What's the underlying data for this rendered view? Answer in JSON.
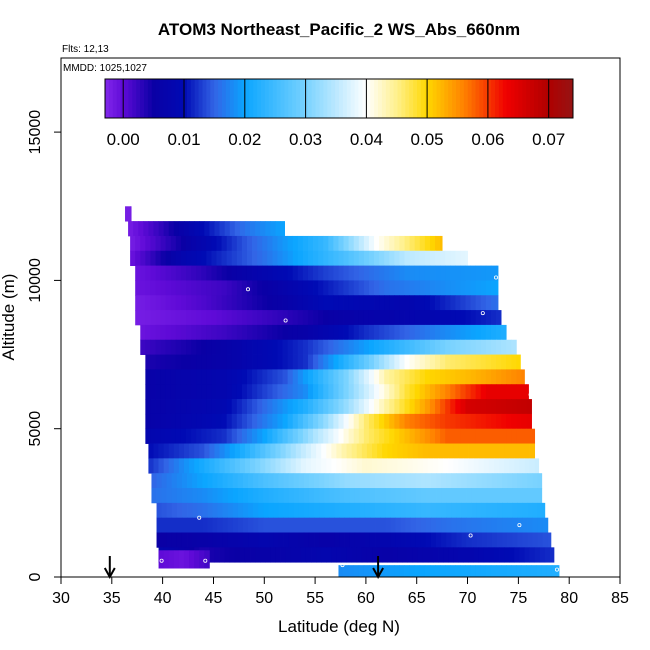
{
  "chart_data": {
    "type": "heatmap",
    "title": "ATOM3 Northeast_Pacific_2 WS_Abs_660nm",
    "annotations": {
      "flights": "Flts: 12,13",
      "dates": "MMDD: 1025,1027"
    },
    "xlabel": "Latitude (deg N)",
    "ylabel": "Altitude (m)",
    "xlim": [
      30,
      85
    ],
    "ylim": [
      0,
      17500
    ],
    "x_ticks": [
      "30",
      "35",
      "40",
      "45",
      "50",
      "55",
      "60",
      "65",
      "70",
      "75",
      "80",
      "85"
    ],
    "y_ticks": [
      "0",
      "5000",
      "10000",
      "15000"
    ],
    "y_tick_values": [
      0,
      5000,
      10000,
      15000
    ],
    "colorbar": {
      "range": [
        -0.003,
        0.074
      ],
      "tick_labels": [
        "0.00",
        "0.01",
        "0.02",
        "0.03",
        "0.04",
        "0.05",
        "0.06",
        "0.07"
      ],
      "tick_values": [
        0,
        0.01,
        0.02,
        0.03,
        0.04,
        0.05,
        0.06,
        0.07
      ]
    },
    "arrows_latitude": [
      34.8,
      61.2
    ],
    "bands": [
      {
        "alt_bottom": 12000,
        "alt_top": 12500,
        "lat_start": 36.3,
        "lat_end": 36.9,
        "knots": [
          [
            36.3,
            -0.002
          ],
          [
            36.9,
            -0.002
          ]
        ]
      },
      {
        "alt_bottom": 11500,
        "alt_top": 12000,
        "lat_start": 36.6,
        "lat_end": 52.0,
        "knots": [
          [
            36.6,
            -0.002
          ],
          [
            40.0,
            0.003
          ],
          [
            44.0,
            0.01
          ],
          [
            48.0,
            0.016
          ],
          [
            52.0,
            0.02
          ]
        ]
      },
      {
        "alt_bottom": 11000,
        "alt_top": 11500,
        "lat_start": 36.8,
        "lat_end": 67.5,
        "knots": [
          [
            36.8,
            -0.002
          ],
          [
            42.0,
            0.005
          ],
          [
            48.0,
            0.014
          ],
          [
            56.0,
            0.024
          ],
          [
            61.0,
            0.04
          ],
          [
            67.5,
            0.052
          ]
        ]
      },
      {
        "alt_bottom": 10500,
        "alt_top": 11000,
        "lat_start": 36.8,
        "lat_end": 70.0,
        "knots": [
          [
            36.8,
            -0.001
          ],
          [
            42.0,
            0.008
          ],
          [
            50.0,
            0.016
          ],
          [
            58.0,
            0.026
          ],
          [
            64.0,
            0.035
          ],
          [
            70.0,
            0.038
          ]
        ]
      },
      {
        "alt_bottom": 10000,
        "alt_top": 10500,
        "lat_start": 37.3,
        "lat_end": 73.0,
        "knots": [
          [
            37.3,
            -0.001
          ],
          [
            44.0,
            0.003
          ],
          [
            50.0,
            0.008
          ],
          [
            56.0,
            0.013
          ],
          [
            64.0,
            0.018
          ],
          [
            73.0,
            0.019
          ]
        ]
      },
      {
        "alt_bottom": 9500,
        "alt_top": 10000,
        "lat_start": 37.3,
        "lat_end": 73.0,
        "knots": [
          [
            37.3,
            -0.001
          ],
          [
            46.0,
            0.002
          ],
          [
            51.0,
            0.006
          ],
          [
            55.0,
            0.01
          ],
          [
            62.0,
            0.016
          ],
          [
            73.0,
            0.02
          ]
        ]
      },
      {
        "alt_bottom": 9000,
        "alt_top": 9500,
        "lat_start": 37.3,
        "lat_end": 73.0,
        "knots": [
          [
            37.3,
            -0.002
          ],
          [
            44.0,
            0.001
          ],
          [
            52.0,
            0.006
          ],
          [
            56.0,
            0.01
          ],
          [
            64.0,
            0.008
          ],
          [
            73.0,
            0.016
          ]
        ]
      },
      {
        "alt_bottom": 8500,
        "alt_top": 9000,
        "lat_start": 37.3,
        "lat_end": 73.3,
        "knots": [
          [
            37.3,
            -0.002
          ],
          [
            45.0,
            0.0
          ],
          [
            52.0,
            0.003
          ],
          [
            58.0,
            0.006
          ],
          [
            66.0,
            0.008
          ],
          [
            73.3,
            0.012
          ]
        ]
      },
      {
        "alt_bottom": 8000,
        "alt_top": 8500,
        "lat_start": 37.8,
        "lat_end": 73.8,
        "knots": [
          [
            37.8,
            -0.001
          ],
          [
            46.0,
            0.002
          ],
          [
            54.0,
            0.006
          ],
          [
            60.0,
            0.012
          ],
          [
            68.0,
            0.018
          ],
          [
            73.8,
            0.022
          ]
        ]
      },
      {
        "alt_bottom": 7500,
        "alt_top": 8000,
        "lat_start": 37.8,
        "lat_end": 74.8,
        "knots": [
          [
            37.8,
            0.002
          ],
          [
            46.0,
            0.006
          ],
          [
            54.0,
            0.012
          ],
          [
            62.0,
            0.022
          ],
          [
            68.0,
            0.03
          ],
          [
            74.8,
            0.034
          ]
        ]
      },
      {
        "alt_bottom": 7000,
        "alt_top": 7500,
        "lat_start": 38.3,
        "lat_end": 75.2,
        "knots": [
          [
            38.3,
            0.004
          ],
          [
            46.0,
            0.006
          ],
          [
            54.0,
            0.012
          ],
          [
            60.0,
            0.028
          ],
          [
            64.0,
            0.04
          ],
          [
            68.0,
            0.046
          ],
          [
            75.2,
            0.05
          ]
        ]
      },
      {
        "alt_bottom": 6500,
        "alt_top": 7000,
        "lat_start": 38.3,
        "lat_end": 75.6,
        "knots": [
          [
            38.3,
            0.006
          ],
          [
            46.0,
            0.008
          ],
          [
            52.0,
            0.014
          ],
          [
            58.0,
            0.03
          ],
          [
            62.0,
            0.044
          ],
          [
            66.0,
            0.05
          ],
          [
            70.0,
            0.052
          ],
          [
            75.6,
            0.056
          ]
        ]
      },
      {
        "alt_bottom": 6000,
        "alt_top": 6500,
        "lat_start": 38.3,
        "lat_end": 76.0,
        "knots": [
          [
            38.3,
            0.006
          ],
          [
            46.0,
            0.008
          ],
          [
            54.0,
            0.018
          ],
          [
            60.0,
            0.036
          ],
          [
            64.0,
            0.048
          ],
          [
            68.0,
            0.056
          ],
          [
            72.0,
            0.064
          ],
          [
            76.0,
            0.064
          ]
        ]
      },
      {
        "alt_bottom": 5500,
        "alt_top": 6000,
        "lat_start": 38.3,
        "lat_end": 76.3,
        "knots": [
          [
            38.3,
            0.006
          ],
          [
            46.0,
            0.009
          ],
          [
            54.0,
            0.022
          ],
          [
            58.0,
            0.032
          ],
          [
            62.0,
            0.044
          ],
          [
            66.0,
            0.054
          ],
          [
            70.0,
            0.066
          ],
          [
            76.3,
            0.068
          ]
        ]
      },
      {
        "alt_bottom": 5000,
        "alt_top": 5500,
        "lat_start": 38.3,
        "lat_end": 76.3,
        "knots": [
          [
            38.3,
            0.006
          ],
          [
            46.0,
            0.01
          ],
          [
            52.0,
            0.02
          ],
          [
            56.0,
            0.032
          ],
          [
            60.0,
            0.046
          ],
          [
            64.0,
            0.056
          ],
          [
            68.0,
            0.06
          ],
          [
            72.0,
            0.062
          ],
          [
            76.3,
            0.064
          ]
        ]
      },
      {
        "alt_bottom": 4500,
        "alt_top": 5000,
        "lat_start": 38.3,
        "lat_end": 76.6,
        "knots": [
          [
            38.3,
            0.008
          ],
          [
            46.0,
            0.012
          ],
          [
            50.0,
            0.02
          ],
          [
            55.0,
            0.034
          ],
          [
            60.0,
            0.046
          ],
          [
            64.0,
            0.052
          ],
          [
            68.0,
            0.058
          ],
          [
            76.6,
            0.058
          ]
        ]
      },
      {
        "alt_bottom": 4000,
        "alt_top": 4500,
        "lat_start": 38.6,
        "lat_end": 76.6,
        "knots": [
          [
            38.6,
            0.01
          ],
          [
            44.0,
            0.014
          ],
          [
            48.0,
            0.022
          ],
          [
            54.0,
            0.036
          ],
          [
            58.0,
            0.044
          ],
          [
            62.0,
            0.05
          ],
          [
            66.0,
            0.052
          ],
          [
            76.6,
            0.052
          ]
        ]
      },
      {
        "alt_bottom": 3500,
        "alt_top": 4000,
        "lat_start": 38.6,
        "lat_end": 77.0,
        "knots": [
          [
            38.6,
            0.012
          ],
          [
            42.0,
            0.018
          ],
          [
            48.0,
            0.028
          ],
          [
            54.0,
            0.038
          ],
          [
            60.0,
            0.042
          ],
          [
            68.0,
            0.04
          ],
          [
            77.0,
            0.036
          ]
        ]
      },
      {
        "alt_bottom": 3000,
        "alt_top": 3500,
        "lat_start": 38.9,
        "lat_end": 77.3,
        "knots": [
          [
            38.9,
            0.015
          ],
          [
            44.0,
            0.02
          ],
          [
            50.0,
            0.026
          ],
          [
            58.0,
            0.032
          ],
          [
            66.0,
            0.034
          ],
          [
            77.3,
            0.03
          ]
        ]
      },
      {
        "alt_bottom": 2500,
        "alt_top": 3000,
        "lat_start": 38.9,
        "lat_end": 77.3,
        "knots": [
          [
            38.9,
            0.016
          ],
          [
            44.0,
            0.018
          ],
          [
            50.0,
            0.022
          ],
          [
            58.0,
            0.026
          ],
          [
            66.0,
            0.028
          ],
          [
            77.3,
            0.028
          ]
        ]
      },
      {
        "alt_bottom": 2000,
        "alt_top": 2500,
        "lat_start": 39.4,
        "lat_end": 77.6,
        "knots": [
          [
            39.4,
            0.014
          ],
          [
            44.0,
            0.016
          ],
          [
            50.0,
            0.02
          ],
          [
            58.0,
            0.022
          ],
          [
            66.0,
            0.024
          ],
          [
            77.6,
            0.022
          ]
        ]
      },
      {
        "alt_bottom": 1500,
        "alt_top": 2000,
        "lat_start": 39.4,
        "lat_end": 77.9,
        "knots": [
          [
            39.4,
            0.012
          ],
          [
            44.0,
            0.012
          ],
          [
            50.0,
            0.014
          ],
          [
            56.0,
            0.014
          ],
          [
            62.0,
            0.014
          ],
          [
            68.0,
            0.016
          ],
          [
            77.9,
            0.018
          ]
        ]
      },
      {
        "alt_bottom": 1000,
        "alt_top": 1500,
        "lat_start": 39.4,
        "lat_end": 78.2,
        "knots": [
          [
            39.4,
            0.005
          ],
          [
            44.0,
            0.006
          ],
          [
            50.0,
            0.008
          ],
          [
            56.0,
            0.006
          ],
          [
            62.0,
            0.008
          ],
          [
            70.0,
            0.012
          ],
          [
            78.2,
            0.014
          ]
        ]
      },
      {
        "alt_bottom": 500,
        "alt_top": 1000,
        "lat_start": 39.6,
        "lat_end": 78.5,
        "knots": [
          [
            39.6,
            0.008
          ],
          [
            44.0,
            0.004
          ],
          [
            50.0,
            0.006
          ],
          [
            56.0,
            0.008
          ],
          [
            62.0,
            0.006
          ],
          [
            70.0,
            0.008
          ],
          [
            78.5,
            0.012
          ]
        ]
      },
      {
        "alt_bottom": 300,
        "alt_top": 900,
        "lat_start": 39.6,
        "lat_end": 44.6,
        "knots": [
          [
            39.6,
            0.0
          ],
          [
            42.0,
            -0.001
          ],
          [
            44.6,
            0.002
          ]
        ]
      },
      {
        "alt_bottom": 0,
        "alt_top": 400,
        "lat_start": 57.3,
        "lat_end": 79.0,
        "knots": [
          [
            57.3,
            0.018
          ],
          [
            65.0,
            0.02
          ],
          [
            72.0,
            0.021
          ],
          [
            79.0,
            0.022
          ]
        ]
      }
    ],
    "sample_markers": [
      {
        "lat": 48.4,
        "alt": 9700
      },
      {
        "lat": 52.1,
        "alt": 8650
      },
      {
        "lat": 72.8,
        "alt": 10100
      },
      {
        "lat": 71.5,
        "alt": 8900
      },
      {
        "lat": 76.2,
        "alt": 6150
      },
      {
        "lat": 43.6,
        "alt": 2000
      },
      {
        "lat": 75.1,
        "alt": 1750
      },
      {
        "lat": 70.3,
        "alt": 1400
      },
      {
        "lat": 39.9,
        "alt": 550
      },
      {
        "lat": 44.2,
        "alt": 550
      },
      {
        "lat": 57.7,
        "alt": 400
      },
      {
        "lat": 78.8,
        "alt": 250
      }
    ]
  }
}
